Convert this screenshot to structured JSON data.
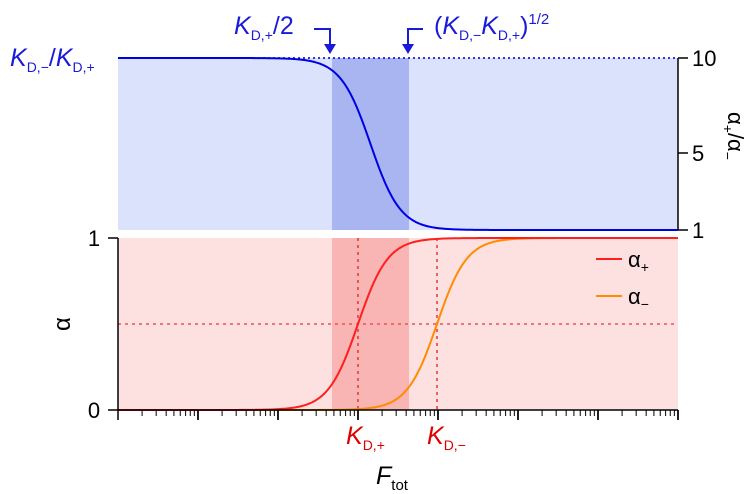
{
  "chart_data": [
    {
      "type": "line",
      "panel": "top",
      "y_scale": "linear",
      "ylim": [
        1,
        10
      ],
      "ytick_labels": [
        "1",
        "5",
        "10"
      ],
      "ylabel": "α+/α−",
      "ylabel_parts": [
        "α",
        "+",
        "/α",
        "−"
      ],
      "x_scale": "log",
      "shaded_band": {
        "from": "KD,+/2",
        "to": "(KD,−KD,+)^1/2"
      },
      "reference_line": {
        "label_parts": [
          "K",
          "D,−",
          "/",
          "K",
          "D,+"
        ],
        "value": 10,
        "style": "dotted"
      },
      "annotations": [
        {
          "parts": [
            "K",
            "D,+",
            "/2"
          ],
          "arrow": "down"
        },
        {
          "parts": [
            "(",
            "K",
            "D,−",
            "K",
            "D,+",
            ")",
            "1/2"
          ],
          "arrow": "down"
        }
      ],
      "series": [
        {
          "color": "#0000e6",
          "shape": "sigmoid-decreasing",
          "y_start": 10,
          "y_end": 1
        }
      ],
      "colors": {
        "fill": "#dbe2fb",
        "band": "#a8b5f0",
        "line": "#0000e6",
        "text": "#1a1adb"
      }
    },
    {
      "type": "line",
      "panel": "bottom",
      "y_scale": "linear",
      "ylim": [
        0,
        1
      ],
      "ytick_labels": [
        "0",
        "1"
      ],
      "ylabel": "α",
      "x_scale": "log",
      "xlabel_parts": [
        "F",
        "tot"
      ],
      "xtick_labels": [
        {
          "parts": [
            "K",
            "D,+"
          ]
        },
        {
          "parts": [
            "K",
            "D,−"
          ]
        }
      ],
      "reference_line": {
        "y": 0.5,
        "style": "dashed"
      },
      "legend": {
        "position": "top-right"
      },
      "series": [
        {
          "name": "α+",
          "name_parts": [
            "α",
            "+"
          ],
          "color": "#ff1f1f",
          "midpoint": "KD,+"
        },
        {
          "name": "α−",
          "name_parts": [
            "α",
            "−"
          ],
          "color": "#ff8c00",
          "midpoint": "KD,−"
        }
      ],
      "colors": {
        "fill": "#fde0e0",
        "band": "#f9b4b4",
        "text": "#e00000"
      }
    }
  ]
}
